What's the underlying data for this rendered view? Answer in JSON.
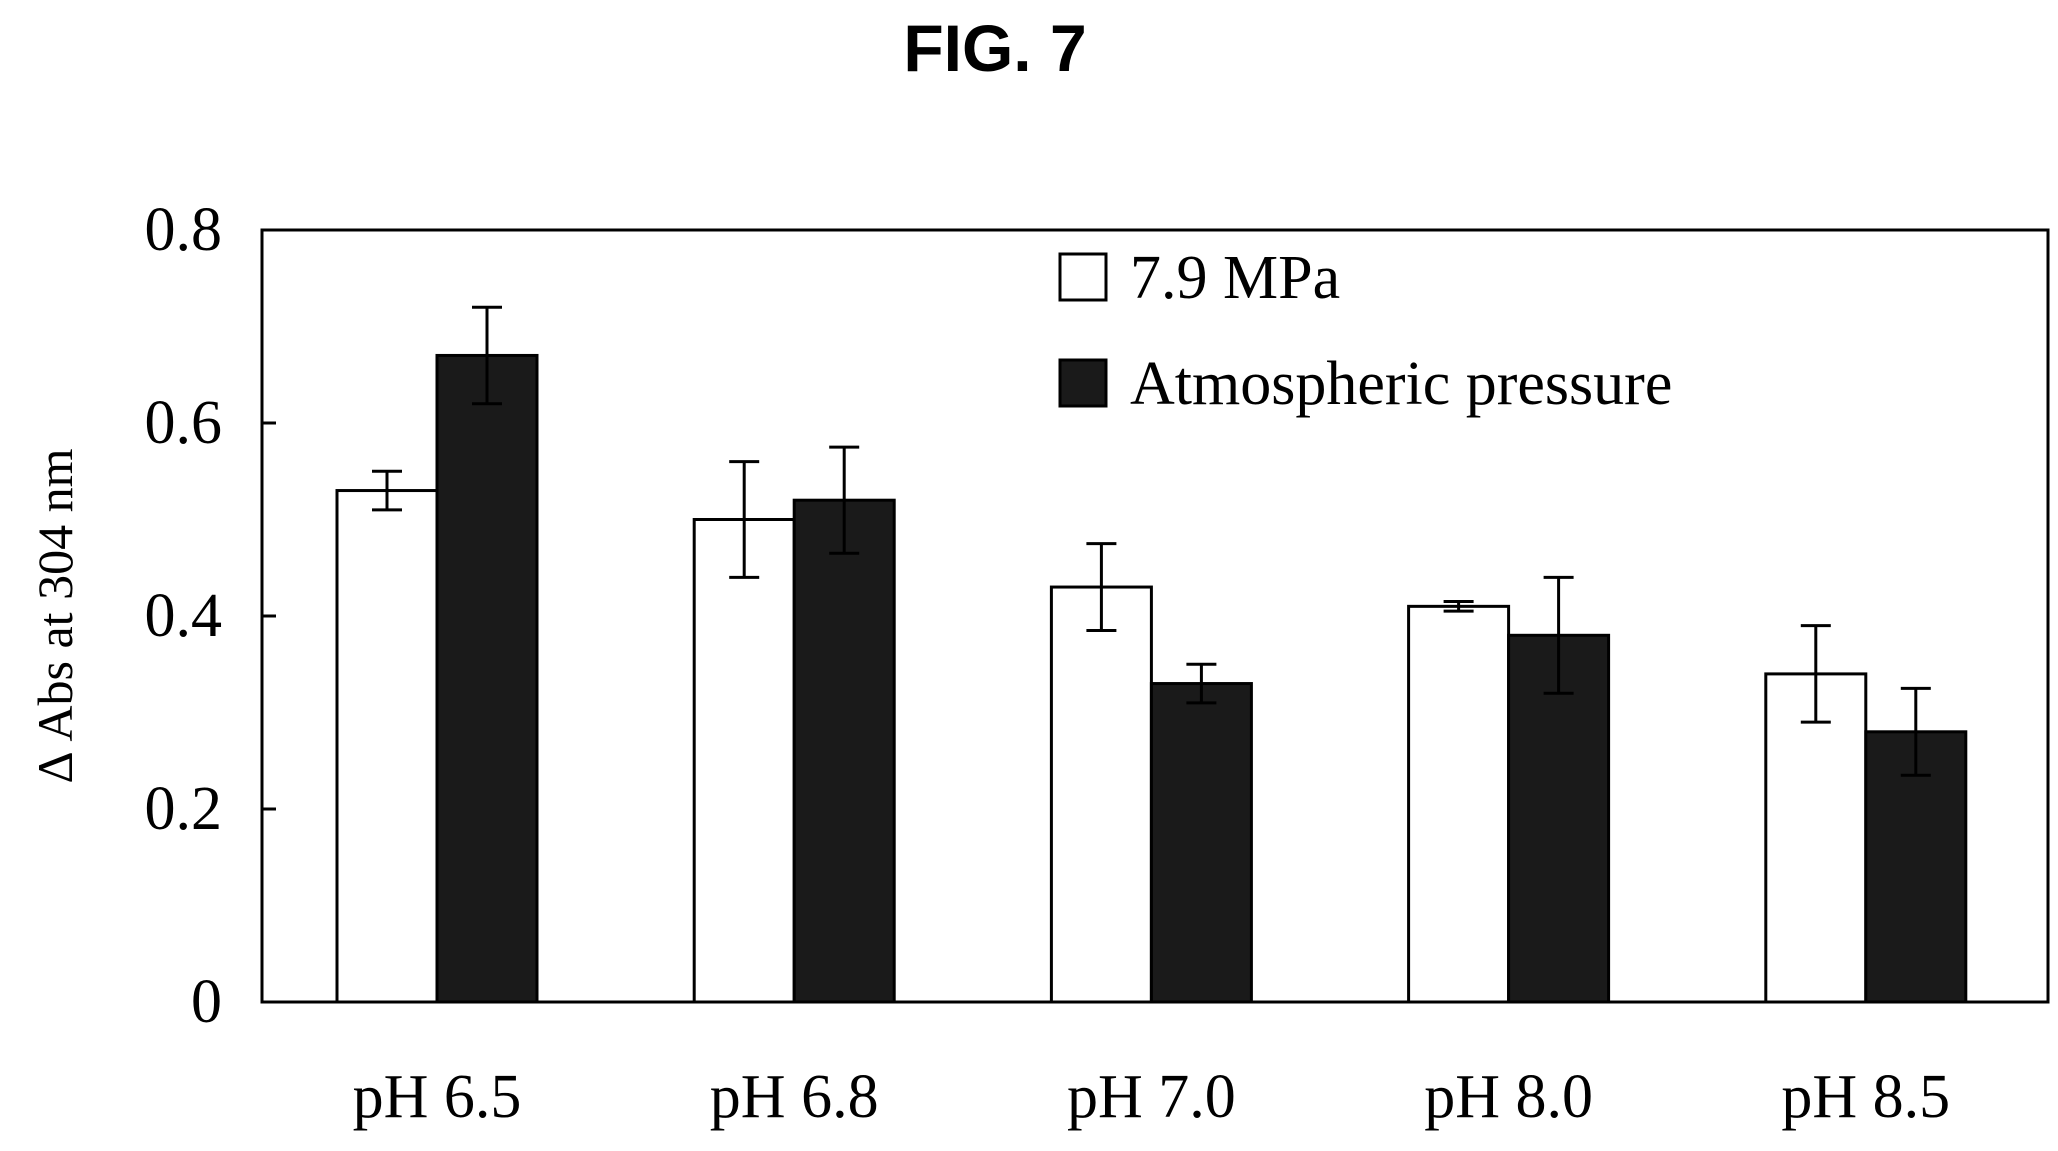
{
  "figure_label": "FIG. 7",
  "chart_data": {
    "type": "bar",
    "title": "",
    "xlabel": "",
    "ylabel": "Δ Abs at 304 nm",
    "ylim": [
      0,
      0.8
    ],
    "yticks": [
      0,
      0.2,
      0.4,
      0.6,
      0.8
    ],
    "ytick_labels": [
      "0",
      "0.2",
      "0.4",
      "0.6",
      "0.8"
    ],
    "categories": [
      "pH 6.5",
      "pH 6.8",
      "pH 7.0",
      "pH 8.0",
      "pH 8.5"
    ],
    "series": [
      {
        "name": "7.9 MPa",
        "fill": "#ffffff",
        "values": [
          0.53,
          0.5,
          0.43,
          0.41,
          0.34
        ],
        "errors": [
          0.02,
          0.06,
          0.045,
          0.005,
          0.05
        ]
      },
      {
        "name": "Atmospheric pressure",
        "fill": "#1a1a1a",
        "values": [
          0.67,
          0.52,
          0.33,
          0.38,
          0.28
        ],
        "errors": [
          0.05,
          0.055,
          0.02,
          0.06,
          0.045
        ]
      }
    ],
    "legend_position": "top-right",
    "grid": false
  }
}
